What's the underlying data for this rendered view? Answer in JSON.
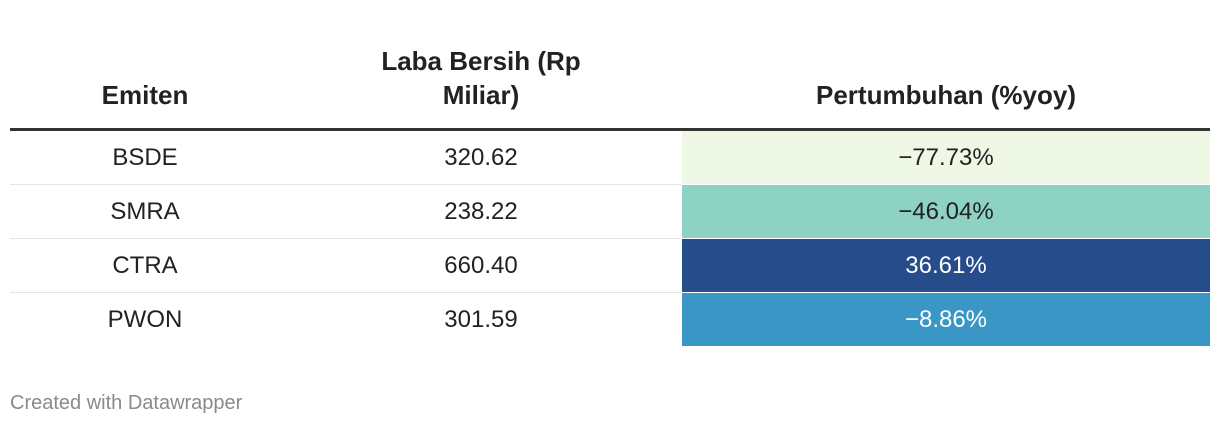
{
  "table": {
    "columns": [
      "Emiten",
      "Laba Bersih (Rp Miliar)",
      "Pertumbuhan (%yoy)"
    ],
    "rows": [
      [
        "BSDE",
        "320.62",
        "−77.73%"
      ],
      [
        "SMRA",
        "238.22",
        "−46.04%"
      ],
      [
        "CTRA",
        "660.40",
        "36.61%"
      ],
      [
        "PWON",
        "301.59",
        "−8.86%"
      ]
    ],
    "growth_colors": [
      "#eff7e5",
      "#8ed2c3",
      "#264c8c",
      "#3a96c5"
    ],
    "growth_text_colors": [
      "#222222",
      "#222222",
      "#ffffff",
      "#ffffff"
    ]
  },
  "footer": "Created with Datawrapper"
}
